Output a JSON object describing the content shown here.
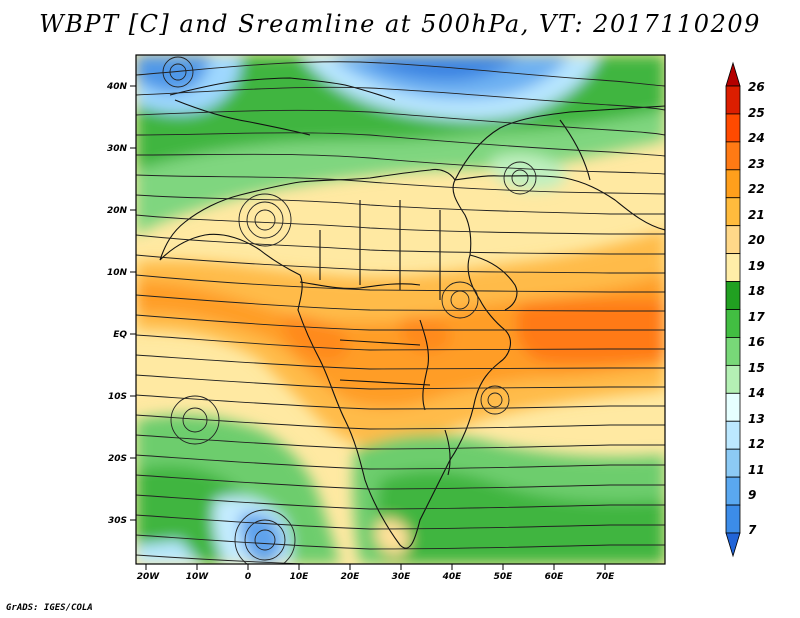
{
  "title": "WBPT [C] and Sreamline at 500hPa, VT: 2017110209",
  "footer": "GrADS: IGES/COLA",
  "map": {
    "lat_ticks": [
      "40N",
      "30N",
      "20N",
      "10N",
      "EQ",
      "10S",
      "20S",
      "30S"
    ],
    "lon_ticks": [
      "20W",
      "10W",
      "0",
      "10E",
      "20E",
      "30E",
      "40E",
      "50E",
      "60E",
      "70E"
    ]
  },
  "colorbar": {
    "labels": [
      "26",
      "25",
      "24",
      "23",
      "22",
      "21",
      "20",
      "19",
      "18",
      "17",
      "16",
      "15",
      "14",
      "13",
      "12",
      "11",
      "9",
      "7"
    ],
    "colors": [
      "#b40000",
      "#dc1e00",
      "#ff4a00",
      "#ff7a14",
      "#ff9f1c",
      "#ffbb3d",
      "#ffd889",
      "#ffeda8",
      "#21a021",
      "#42be42",
      "#78d878",
      "#b4f0b4",
      "#e6ffff",
      "#bce8ff",
      "#8ccaf5",
      "#5aa8f0",
      "#3c8ce8",
      "#2164d8"
    ]
  }
}
